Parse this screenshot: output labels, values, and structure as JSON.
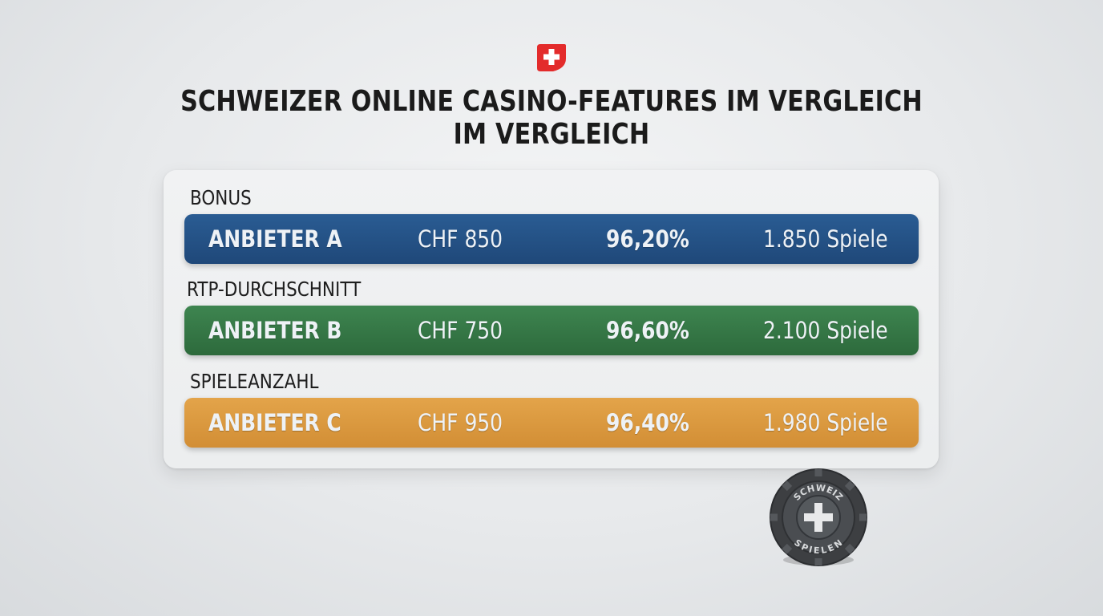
{
  "header": {
    "title_line1": "SCHWEIZER ONLINE CASINO-FEATURES IM VERGLEICH",
    "title_line2": "IM VERGLEICH",
    "flag_icon": "swiss-flag-icon"
  },
  "comparison": {
    "label_bonus": "BONUS",
    "label_rtp": "RTP-DURCHSCHNITT",
    "label_games": "SPIELEANZAHL",
    "rows": [
      {
        "name": "ANBIETER A",
        "bonus": "CHF 850",
        "rtp": "96,20%",
        "games": "1.850 Spiele",
        "color": "#25548a"
      },
      {
        "name": "ANBIETER B",
        "bonus": "CHF 750",
        "rtp": "96,60%",
        "games": "2.100 Spiele",
        "color": "#367a48"
      },
      {
        "name": "ANBIETER C",
        "bonus": "CHF 950",
        "rtp": "96,40%",
        "games": "1.980 Spiele",
        "color": "#dc9a40"
      }
    ]
  },
  "chip": {
    "top_text": "SCHWEIZ",
    "bottom_text": "SPIELEN",
    "icon": "swiss-cross-icon"
  }
}
